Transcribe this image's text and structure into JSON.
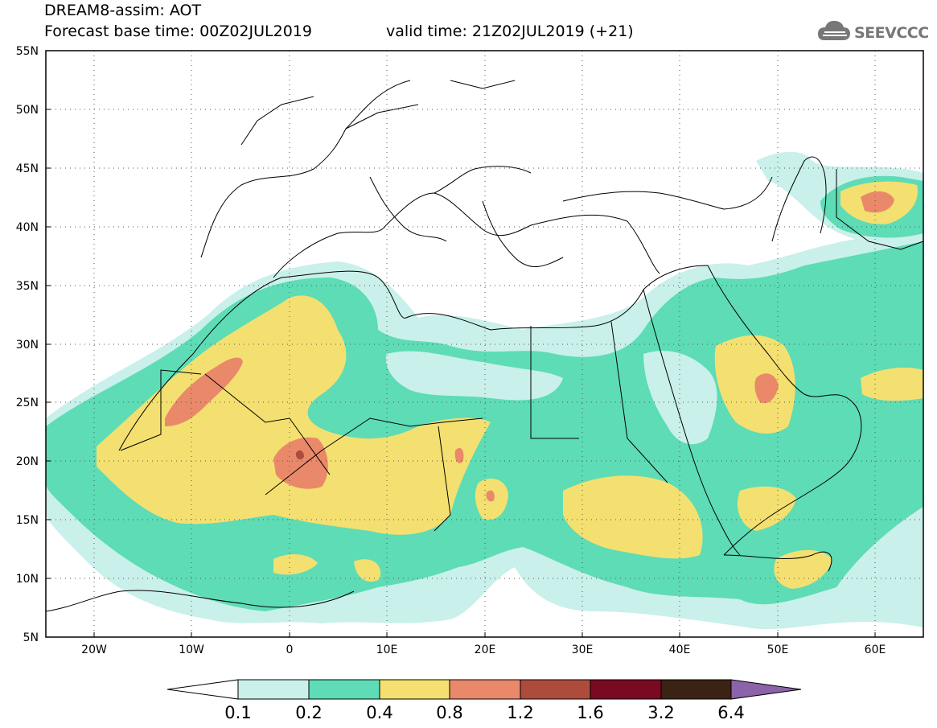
{
  "header": {
    "line1": "DREAM8-assim: AOT",
    "forecast_base": "Forecast base time: 00Z02JUL2019",
    "valid": "valid time: 21Z02JUL2019 (+21)"
  },
  "logo": {
    "text": "SEEVCCC",
    "icon": "cloud-icon"
  },
  "map": {
    "lon_range": [
      -25,
      65
    ],
    "lat_range": [
      5,
      55
    ],
    "lat_labels": [
      "5N",
      "10N",
      "15N",
      "20N",
      "25N",
      "30N",
      "35N",
      "40N",
      "45N",
      "50N",
      "55N"
    ],
    "lon_labels": [
      "20W",
      "10W",
      "0",
      "10E",
      "20E",
      "30E",
      "40E",
      "50E",
      "60E"
    ],
    "grid": "dotted"
  },
  "colorbar": {
    "labels": [
      "0.1",
      "0.2",
      "0.4",
      "0.8",
      "1.2",
      "1.6",
      "3.2",
      "6.4"
    ],
    "colors": [
      "#ffffff",
      "#c9f0ea",
      "#5ddcb6",
      "#f4e070",
      "#e9896a",
      "#ad4c3c",
      "#7a0a22",
      "#3a2214",
      "#8b63a8"
    ]
  }
}
